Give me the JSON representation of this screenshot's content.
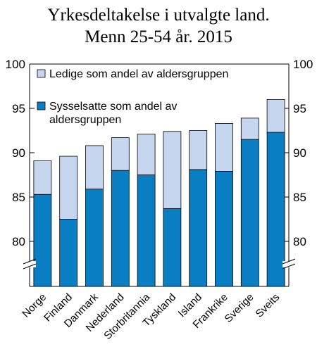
{
  "chart_data": {
    "type": "bar",
    "stacked": true,
    "title": "Yrkesdeltakelse i utvalgte land.",
    "subtitle": "Menn 25-54 år. 2015",
    "categories": [
      "Norge",
      "Finland",
      "Danmark",
      "Nederland",
      "Storbritannia",
      "Tyskland",
      "Island",
      "Frankrike",
      "Sverige",
      "Sveits"
    ],
    "series": [
      {
        "name_lines": [
          "Sysselsatte som andel av",
          "aldersgruppen"
        ],
        "color": "#0a7ec2",
        "values": [
          85.3,
          82.5,
          85.9,
          88.0,
          87.5,
          83.7,
          88.1,
          87.9,
          91.5,
          92.3
        ]
      },
      {
        "name": "Ledige som andel av aldersgruppen",
        "color": "#c5d6ee",
        "values": [
          3.8,
          7.1,
          4.9,
          3.7,
          4.6,
          8.7,
          4.4,
          5.4,
          2.4,
          3.7
        ]
      }
    ],
    "yticks": [
      "100",
      "95",
      "90",
      "85",
      "80"
    ],
    "ylim": [
      75,
      100
    ],
    "axis_break": true,
    "legend_position": "top-left inside plot"
  }
}
